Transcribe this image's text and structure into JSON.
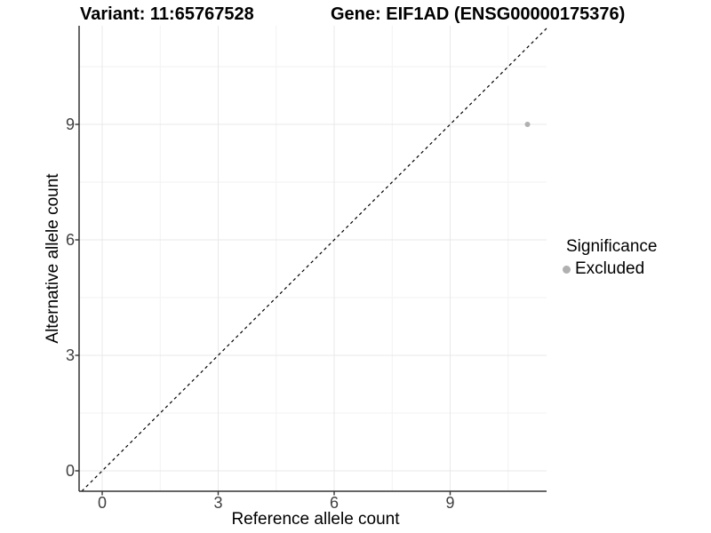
{
  "chart_data": {
    "type": "scatter",
    "title_left": "Variant: 11:65767528",
    "title_right": "Gene: EIF1AD (ENSG00000175376)",
    "xlabel": "Reference allele count",
    "ylabel": "Alternative allele count",
    "x_ticks": [
      0,
      3,
      6,
      9
    ],
    "y_ticks": [
      0,
      3,
      6,
      9
    ],
    "x_minor": [
      1.5,
      4.5,
      7.5,
      10.5
    ],
    "y_minor": [
      1.5,
      4.5,
      7.5,
      10.5
    ],
    "xlim": [
      -0.6,
      11.5
    ],
    "ylim": [
      -0.53,
      11.56
    ],
    "grid": true,
    "points": [
      {
        "x": 11,
        "y": 9,
        "significance": "Excluded"
      }
    ],
    "reference_line": {
      "slope": 1,
      "intercept": 0,
      "style": "dashed",
      "color": "#000000"
    },
    "legend": {
      "position": "right",
      "title": "Significance",
      "items": [
        {
          "label": "Excluded",
          "color": "#b0b0b0"
        }
      ]
    }
  },
  "colors": {
    "background": "#ffffff",
    "axis_line": "#333333",
    "tick_mark": "#333333",
    "tick_label": "#404040",
    "grid_major": "#e8e8e8",
    "grid_minor": "#f2f2f2",
    "point": "#b3b3b3"
  }
}
